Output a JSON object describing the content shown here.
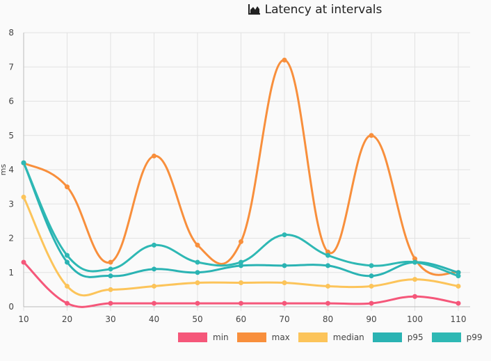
{
  "chart_data": {
    "type": "line",
    "title": "Latency at intervals",
    "title_icon": "area-chart-icon",
    "xlabel": "",
    "ylabel": "ms",
    "x": [
      10,
      20,
      30,
      40,
      50,
      60,
      70,
      80,
      90,
      100,
      110
    ],
    "ylim": [
      0,
      8
    ],
    "yticks": [
      0,
      1,
      2,
      3,
      4,
      5,
      6,
      7,
      8
    ],
    "grid": true,
    "legend": "bottom-right",
    "series": [
      {
        "name": "min",
        "color": "#f5577a",
        "values": [
          1.3,
          0.1,
          0.1,
          0.1,
          0.1,
          0.1,
          0.1,
          0.1,
          0.1,
          0.3,
          0.1
        ]
      },
      {
        "name": "max",
        "color": "#f88f3c",
        "values": [
          4.2,
          3.5,
          1.3,
          4.4,
          1.8,
          1.9,
          7.2,
          1.6,
          5.0,
          1.4,
          1.0
        ]
      },
      {
        "name": "median",
        "color": "#fcc45a",
        "values": [
          3.2,
          0.6,
          0.5,
          0.6,
          0.7,
          0.7,
          0.7,
          0.6,
          0.6,
          0.8,
          0.6
        ]
      },
      {
        "name": "p95",
        "color": "#2ab3b3",
        "values": [
          4.2,
          1.3,
          0.9,
          1.1,
          1.0,
          1.2,
          1.2,
          1.2,
          0.9,
          1.3,
          1.0
        ]
      },
      {
        "name": "p99",
        "color": "#2eb8b4",
        "values": [
          4.2,
          1.5,
          1.1,
          1.8,
          1.3,
          1.3,
          2.1,
          1.5,
          1.2,
          1.3,
          0.9
        ]
      }
    ]
  }
}
